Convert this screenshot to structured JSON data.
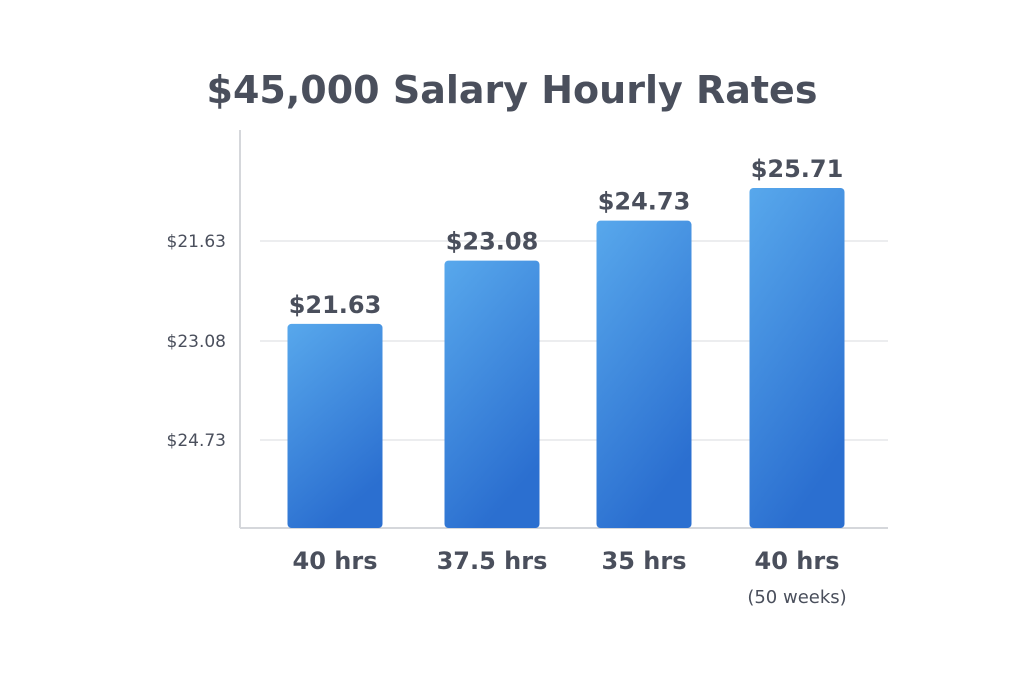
{
  "chart_data": {
    "type": "bar",
    "title": "$45,000 Salary Hourly Rates",
    "categories": [
      "40 hrs",
      "37.5 hrs",
      "35 hrs",
      "40 hrs"
    ],
    "category_sublabels": [
      "",
      "",
      "",
      "(50 weeks)"
    ],
    "values": [
      21.63,
      23.08,
      24.73,
      25.71
    ],
    "data_labels": [
      "$21.63",
      "$23.08",
      "$24.73",
      "$25.71"
    ],
    "y_tick_labels": [
      "$21.63",
      "$23.08",
      "$24.73"
    ],
    "xlabel": "",
    "ylabel": "",
    "grid": true,
    "colors": {
      "bar_top": "#58a8ec",
      "bar_bottom": "#2b6fd0",
      "text": "#4a4f5c",
      "grid": "#e6e7ea",
      "axis": "#d5d7db"
    }
  }
}
